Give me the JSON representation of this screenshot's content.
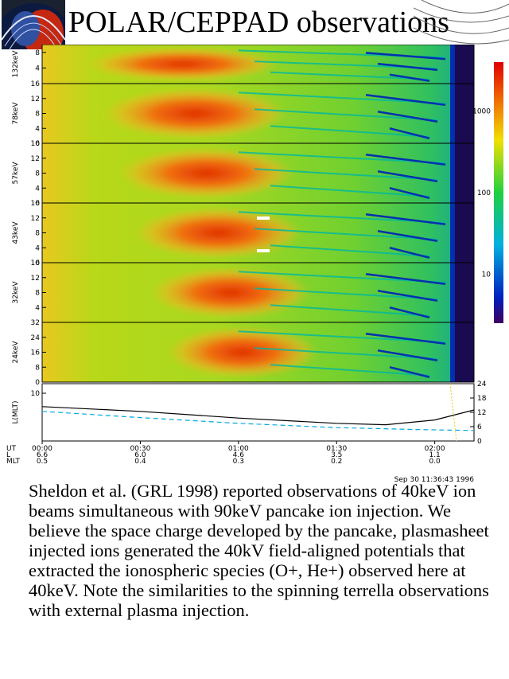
{
  "title": "POLAR/CEPPAD observations",
  "caption": "Sheldon et al. (GRL 1998) reported observations of 40keV ion beams simultaneous with 90keV pancake ion injection. We believe the space charge developed by the pancake, plasmasheet injected ions generated the 40kV field-aligned potentials that extracted the ionospheric species (O+, He+) observed here at 40keV. Note the similarities to the spinning terrella observations with external plasma injection.",
  "colors": {
    "hot": "#d23000",
    "warm": "#f0c000",
    "mid": "#58d000",
    "cool": "#00b8a0",
    "cold": "#0030b0"
  },
  "chart_data": [
    {
      "type": "heatmap",
      "energy_channels": [
        {
          "label": "132keV",
          "yticks": [
            "4",
            "8"
          ],
          "ymax": 10
        },
        {
          "label": "78keV",
          "yticks": [
            "0",
            "4",
            "8",
            "12",
            "16"
          ],
          "ymax": 16
        },
        {
          "label": "57keV",
          "yticks": [
            "0",
            "4",
            "8",
            "12",
            "16"
          ],
          "ymax": 16
        },
        {
          "label": "43keV",
          "yticks": [
            "0",
            "4",
            "8",
            "12",
            "16"
          ],
          "ymax": 16
        },
        {
          "label": "32keV",
          "yticks": [
            "4",
            "8",
            "12",
            "16"
          ],
          "ymax": 16
        },
        {
          "label": "24keV",
          "yticks": [
            "0",
            "8",
            "16",
            "24",
            "32"
          ],
          "ymax": 32
        }
      ],
      "colorbar": {
        "ticks": [
          "10",
          "100",
          "1000"
        ],
        "scale": "log"
      }
    },
    {
      "type": "line",
      "ylabel": "L(MLT)",
      "left_ticks": [
        "10"
      ],
      "right_ticks": [
        "0",
        "6",
        "12",
        "18",
        "24"
      ],
      "series": [
        {
          "style": "solid",
          "x": [
            0,
            0.5,
            1.0,
            1.5,
            1.75,
            2.0,
            2.2
          ],
          "y": [
            7.2,
            6.2,
            4.8,
            3.7,
            3.4,
            4.4,
            6.5
          ]
        },
        {
          "style": "dashed",
          "x": [
            0,
            0.5,
            1.0,
            1.5,
            1.9,
            2.2
          ],
          "y": [
            6.2,
            4.9,
            3.7,
            2.8,
            2.4,
            2.2
          ]
        }
      ],
      "ylim": [
        0,
        12
      ]
    }
  ],
  "x_axis": {
    "rows": [
      "UT",
      "L",
      "MLT"
    ],
    "ticks": [
      {
        "time": "00:00",
        "l": "6.6",
        "mlt": "0.5"
      },
      {
        "time": "00:30",
        "l": "6.0",
        "mlt": "0.4"
      },
      {
        "time": "01:00",
        "l": "4.6",
        "mlt": "0.3"
      },
      {
        "time": "01:30",
        "l": "3.5",
        "mlt": "0.2"
      },
      {
        "time": "02:00",
        "l": "1.1",
        "mlt": "0.0"
      }
    ],
    "xlim": [
      0,
      2.2
    ]
  },
  "footer": "Sep 30 11:36:43 1996"
}
